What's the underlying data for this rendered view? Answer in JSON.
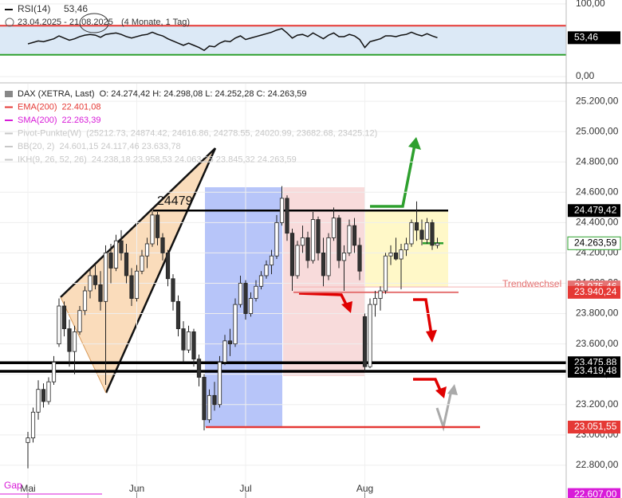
{
  "header": {
    "rsi_title": "RSI(14)",
    "rsi_value": "53,46",
    "range": "23.04.2025 - 21.08.2025",
    "period": "(4 Monate, 1 Tag)"
  },
  "legend": [
    {
      "name": "DAX (XETRA, Last)",
      "text": "O: 24.274,42  H: 24.298,08  L: 24.252,28  C: 24.263,59",
      "color": "#222222"
    },
    {
      "name": "EMA(200)",
      "text": "22.401,08",
      "color": "#e53935"
    },
    {
      "name": "SMA(200)",
      "text": "22.263,39",
      "color": "#d81bd8"
    },
    {
      "name": "Pivot-Punkte(W)",
      "text": "(25212.73, 24874.42, 24616.86, 24278.55, 24020.99, 23682.68, 23425.12)",
      "color": "#c8c8c8"
    },
    {
      "name": "BB(20, 2)",
      "text": "24.601,15  24.117,46  23.633,78",
      "color": "#c8c8c8"
    },
    {
      "name": "IKH(9, 26, 52, 26)",
      "text": "24.238,18  23.958,53  24.063,25  23.845,32  24.263,59",
      "color": "#c8c8c8"
    }
  ],
  "annotations": {
    "peak": "24479",
    "trend": "Trendwechsel",
    "gap": "Gap"
  },
  "chart_data": [
    {
      "type": "candlestick",
      "ylim": [
        22584,
        25316
      ],
      "yticks": [
        {
          "value": 22800,
          "label": "22.800,00"
        },
        {
          "value": 23000,
          "label": "23.000,00"
        },
        {
          "value": 23200,
          "label": "23.200,00"
        },
        {
          "value": 23400,
          "label": "23.400,00"
        },
        {
          "value": 23600,
          "label": "23.600,00"
        },
        {
          "value": 23800,
          "label": "23.800,00"
        },
        {
          "value": 24000,
          "label": "24.000,00"
        },
        {
          "value": 24200,
          "label": "24.200,00"
        },
        {
          "value": 24400,
          "label": "24.400,00"
        },
        {
          "value": 24600,
          "label": "24.600,00"
        },
        {
          "value": 24800,
          "label": "24.800,00"
        },
        {
          "value": 25000,
          "label": "25.000,00"
        },
        {
          "value": 25200,
          "label": "25.200,00"
        }
      ],
      "xticks": [
        {
          "value": 0,
          "label": "Mai"
        },
        {
          "value": 21,
          "label": "Jun"
        },
        {
          "value": 42,
          "label": "Jul"
        },
        {
          "value": 65,
          "label": "Aug"
        }
      ],
      "levels": [
        {
          "value": 23975.46,
          "label": "23.975,46",
          "color": "#e57373"
        },
        {
          "value": 24479.42,
          "label": "24.479,42",
          "color": "#000000"
        },
        {
          "value": 24263.59,
          "label": "24.263,59",
          "color": "#ffffff"
        },
        {
          "value": 23940.24,
          "label": "23.940,24",
          "color": "#e53935"
        },
        {
          "value": 23475.88,
          "label": "23.475,88",
          "color": "#000000"
        },
        {
          "value": 23419.48,
          "label": "23.419,48",
          "color": "#000000"
        },
        {
          "value": 23051.55,
          "label": "23.051,55",
          "color": "#e53935"
        },
        {
          "value": 22607,
          "label": "22.607,00",
          "color": "#d81bd8"
        }
      ],
      "open": [
        22950,
        22980,
        23150,
        23300,
        23220,
        23350,
        23600,
        23850,
        23700,
        23550,
        23680,
        23820,
        23950,
        24050,
        23990,
        23880,
        24200,
        24100,
        24280,
        24200,
        24050,
        23900,
        24080,
        24180,
        24260,
        24450,
        24300,
        24200,
        24030,
        23880,
        23700,
        23560,
        23680,
        23500,
        23380,
        23100,
        23260,
        23200,
        23480,
        23620,
        23600,
        23860,
        24000,
        23800,
        23900,
        23980,
        24050,
        24120,
        24180,
        24400,
        24560,
        24330,
        24050,
        24250,
        24300,
        24150,
        24420,
        24200,
        24050,
        24300,
        24430,
        24150,
        24200,
        24380,
        24250,
        23780,
        23450,
        23860,
        23900,
        23950,
        24180,
        24200,
        24160,
        24220,
        24260,
        24400,
        24350,
        24290,
        24400,
        24250
      ],
      "high": [
        23020,
        23180,
        23360,
        23340,
        23380,
        23520,
        23900,
        23880,
        23760,
        23720,
        23850,
        23980,
        24100,
        24120,
        24080,
        24250,
        24260,
        24320,
        24350,
        24260,
        24100,
        24120,
        24220,
        24300,
        24480,
        24470,
        24330,
        24220,
        24060,
        23920,
        23750,
        23720,
        23700,
        23530,
        23400,
        23300,
        23350,
        23520,
        23660,
        23700,
        23900,
        24050,
        24020,
        23940,
        24020,
        24080,
        24150,
        24220,
        24450,
        24640,
        24580,
        24360,
        24280,
        24380,
        24340,
        24470,
        24440,
        24300,
        24330,
        24500,
        24450,
        24250,
        24420,
        24430,
        24300,
        23800,
        23900,
        23950,
        23980,
        24200,
        24250,
        24300,
        24260,
        24300,
        24420,
        24540,
        24420,
        24430,
        24420,
        24300
      ],
      "low": [
        22780,
        22950,
        23100,
        23180,
        23200,
        23330,
        23580,
        23650,
        23450,
        23400,
        23660,
        23790,
        23900,
        23960,
        23820,
        23330,
        24000,
        24080,
        24150,
        24000,
        23850,
        23880,
        24060,
        24100,
        24240,
        24250,
        24150,
        23980,
        23820,
        23650,
        23480,
        23540,
        23450,
        23320,
        23030,
        23080,
        23160,
        23180,
        23460,
        23520,
        23580,
        23840,
        23760,
        23780,
        23880,
        23960,
        24030,
        24060,
        24160,
        24380,
        24280,
        23950,
        24030,
        24200,
        24100,
        24130,
        24150,
        23980,
        24020,
        24280,
        24100,
        23950,
        24180,
        24200,
        24020,
        23419,
        23440,
        23780,
        23820,
        23930,
        24120,
        24150,
        23960,
        24180,
        24240,
        24280,
        24250,
        24260,
        24220,
        24230
      ],
      "close": [
        22980,
        23150,
        23300,
        23220,
        23350,
        23480,
        23850,
        23700,
        23550,
        23680,
        23820,
        23950,
        24050,
        23990,
        23880,
        24200,
        24100,
        24280,
        24200,
        24050,
        23900,
        24080,
        24180,
        24260,
        24450,
        24300,
        24200,
        24030,
        23880,
        23700,
        23560,
        23680,
        23500,
        23380,
        23100,
        23260,
        23200,
        23480,
        23620,
        23600,
        23860,
        24000,
        23800,
        23900,
        23980,
        24050,
        24120,
        24180,
        24400,
        24560,
        24330,
        24050,
        24250,
        24300,
        24150,
        24420,
        24200,
        24050,
        24300,
        24430,
        24150,
        24200,
        24380,
        24250,
        24080,
        23450,
        23860,
        23900,
        23950,
        24180,
        24200,
        24160,
        24220,
        24260,
        24400,
        24350,
        24290,
        24400,
        24250,
        24263.59
      ]
    },
    {
      "type": "line",
      "name": "RSI(14)",
      "color": "#111111",
      "ylim": [
        -8.7,
        105.4
      ],
      "yticks": [
        {
          "value": 0,
          "label": "0,00"
        },
        {
          "value": 100,
          "label": "100,00"
        }
      ],
      "bands": [
        30,
        70
      ],
      "tag": {
        "value": 53.46,
        "label": "53,46"
      },
      "values": [
        45,
        47,
        49,
        48,
        50,
        52,
        56,
        53,
        50,
        52,
        55,
        57,
        58,
        57,
        54,
        58,
        59,
        60,
        58,
        55,
        53,
        55,
        57,
        58,
        61,
        58,
        56,
        52,
        49,
        46,
        43,
        46,
        43,
        40,
        36,
        42,
        41,
        46,
        49,
        48,
        53,
        56,
        51,
        53,
        55,
        57,
        59,
        61,
        64,
        66,
        60,
        53,
        57,
        58,
        55,
        60,
        56,
        52,
        57,
        60,
        55,
        55,
        58,
        56,
        51,
        40,
        48,
        50,
        52,
        56,
        56,
        55,
        57,
        58,
        61,
        58,
        56,
        59,
        56,
        53.46
      ]
    }
  ]
}
